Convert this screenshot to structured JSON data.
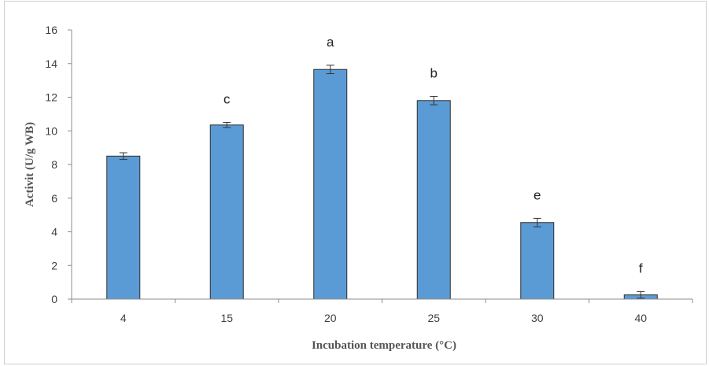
{
  "chart_data": {
    "type": "bar",
    "title": "",
    "xlabel": "Incubation   temperature  (°C)",
    "ylabel": "Activit  (U/g  WB)",
    "categories": [
      "4",
      "15",
      "20",
      "25",
      "30",
      "40"
    ],
    "values": [
      8.5,
      10.35,
      13.65,
      11.8,
      4.55,
      0.25
    ],
    "errors": [
      0.2,
      0.15,
      0.25,
      0.25,
      0.25,
      0.2
    ],
    "annotations": [
      "",
      "c",
      "a",
      "b",
      "e",
      "f"
    ],
    "ylim": [
      0,
      16
    ],
    "yticks": [
      "0",
      "2",
      "4",
      "6",
      "8",
      "10",
      "12",
      "14",
      "16"
    ],
    "bar_color": "#5B9BD5",
    "bar_edge_color": "#2E2E2E",
    "grid": false,
    "legend": "none"
  }
}
